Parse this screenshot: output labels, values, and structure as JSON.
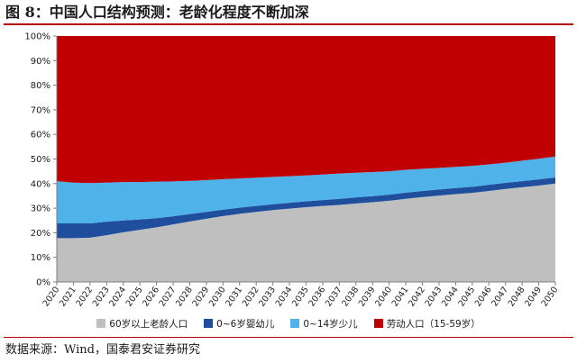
{
  "title": "图 8：中国人口结构预测：老龄化程度不断加深",
  "source": "数据来源：Wind，国泰君安证券研究",
  "chart_data": {
    "type": "area",
    "stacked": true,
    "percent": true,
    "ylim": [
      0,
      100
    ],
    "yticks": [
      "0%",
      "10%",
      "20%",
      "30%",
      "40%",
      "50%",
      "60%",
      "70%",
      "80%",
      "90%",
      "100%"
    ],
    "grid": false,
    "legend_position": "bottom",
    "categories": [
      "2020",
      "2021",
      "2022",
      "2023",
      "2024",
      "2025",
      "2026",
      "2027",
      "2028",
      "2029",
      "2030",
      "2031",
      "2032",
      "2033",
      "2034",
      "2035",
      "2036",
      "2037",
      "2038",
      "2039",
      "2040",
      "2041",
      "2042",
      "2043",
      "2044",
      "2045",
      "2046",
      "2047",
      "2048",
      "2049",
      "2050"
    ],
    "series": [
      {
        "name": "60岁以上老龄人口",
        "color": "#bfbfbf",
        "values": [
          17.8,
          17.8,
          18.0,
          19.0,
          20.2,
          21.2,
          22.2,
          23.4,
          24.6,
          25.7,
          26.8,
          27.7,
          28.5,
          29.2,
          29.8,
          30.4,
          30.9,
          31.3,
          31.9,
          32.4,
          33.0,
          33.8,
          34.5,
          35.1,
          35.7,
          36.2,
          37.0,
          37.8,
          38.5,
          39.2,
          40.0
        ]
      },
      {
        "name": "0~6岁婴幼儿",
        "color": "#1f4e9c",
        "values": [
          6.0,
          6.0,
          5.8,
          5.5,
          4.8,
          4.2,
          3.7,
          3.3,
          3.0,
          2.8,
          2.6,
          2.5,
          2.4,
          2.4,
          2.4,
          2.4,
          2.4,
          2.5,
          2.5,
          2.5,
          2.5,
          2.5,
          2.5,
          2.5,
          2.5,
          2.5,
          2.5,
          2.5,
          2.5,
          2.5,
          2.5
        ]
      },
      {
        "name": "0~14岁少儿",
        "color": "#4fb2e9",
        "values": [
          17.2,
          16.6,
          16.4,
          15.9,
          15.6,
          15.2,
          14.9,
          14.2,
          13.5,
          12.9,
          12.4,
          11.9,
          11.5,
          11.1,
          10.8,
          10.5,
          10.4,
          10.3,
          10.0,
          9.8,
          9.5,
          9.3,
          9.0,
          8.8,
          8.6,
          8.5,
          8.3,
          8.2,
          8.3,
          8.4,
          8.5
        ]
      },
      {
        "name": "劳动人口（15-59岁）",
        "color": "#c00000",
        "values": [
          59.0,
          59.6,
          59.8,
          59.6,
          59.4,
          59.4,
          59.2,
          59.1,
          58.9,
          58.6,
          58.2,
          57.9,
          57.6,
          57.3,
          57.0,
          56.7,
          56.3,
          55.9,
          55.6,
          55.3,
          55.0,
          54.4,
          54.0,
          53.6,
          53.2,
          52.8,
          52.2,
          51.5,
          50.7,
          49.9,
          49.0
        ]
      }
    ]
  }
}
